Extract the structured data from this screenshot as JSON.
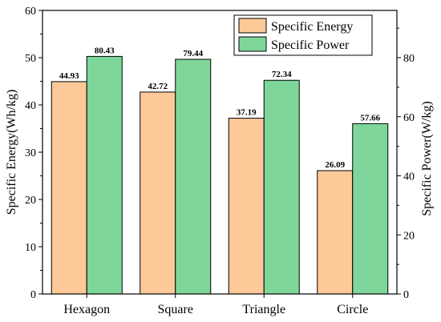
{
  "chart_data": {
    "type": "bar",
    "categories": [
      "Hexagon",
      "Square",
      "Triangle",
      "Circle"
    ],
    "series": [
      {
        "name": "Specific Energy",
        "axis": "left",
        "color": "#fdc999",
        "values": [
          44.93,
          42.72,
          37.19,
          26.09
        ],
        "labels": [
          "44.93",
          "42.72",
          "37.19",
          "26.09"
        ]
      },
      {
        "name": "Specific Power",
        "axis": "right",
        "color": "#7fd69a",
        "values": [
          80.43,
          79.44,
          72.34,
          57.66
        ],
        "labels": [
          "80.43",
          "79.44",
          "72.34",
          "57.66"
        ]
      }
    ],
    "ylabel": "Specific Energy(Wh/kg)",
    "y2label": "Specific Power(W/kg)",
    "ylim": [
      0,
      60
    ],
    "y2lim": [
      0,
      96
    ],
    "yticks": [
      0,
      10,
      20,
      30,
      40,
      50,
      60
    ],
    "ytick_labels": [
      "0",
      "10",
      "20",
      "30",
      "40",
      "50",
      "60"
    ],
    "y2ticks": [
      0,
      20,
      40,
      60,
      80
    ],
    "y2tick_labels": [
      "0",
      "20",
      "40",
      "60",
      "80"
    ],
    "grid": false,
    "legend_position": "top-right"
  }
}
